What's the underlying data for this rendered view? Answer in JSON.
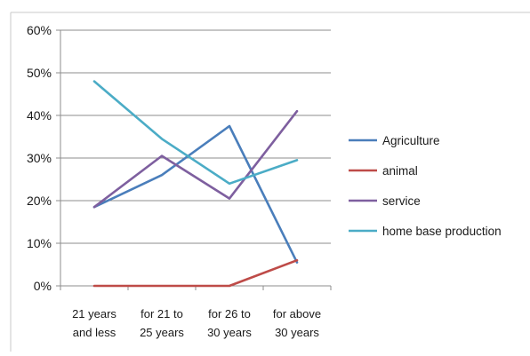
{
  "chart_data": {
    "type": "line",
    "title": "",
    "xlabel": "",
    "ylabel": "",
    "ylim": [
      0,
      60
    ],
    "y_ticks": [
      "0%",
      "10%",
      "20%",
      "30%",
      "40%",
      "50%",
      "60%"
    ],
    "grid": true,
    "legend_position": "right",
    "categories": [
      [
        "21 years",
        "and less"
      ],
      [
        "for 21 to",
        "25 years"
      ],
      [
        "for 26 to",
        "30 years"
      ],
      [
        "for above",
        "30 years"
      ]
    ],
    "series": [
      {
        "name": "Agriculture",
        "color": "#4a7ebb",
        "values": [
          18.5,
          26,
          37.5,
          5.5
        ]
      },
      {
        "name": "animal",
        "color": "#be4b48",
        "values": [
          0,
          0,
          0,
          6
        ]
      },
      {
        "name": "service",
        "color": "#7e5f9f",
        "values": [
          18.5,
          30.5,
          20.5,
          41
        ]
      },
      {
        "name": "home base production",
        "color": "#4bacc6",
        "values": [
          48,
          34.5,
          24,
          29.5
        ]
      }
    ]
  }
}
